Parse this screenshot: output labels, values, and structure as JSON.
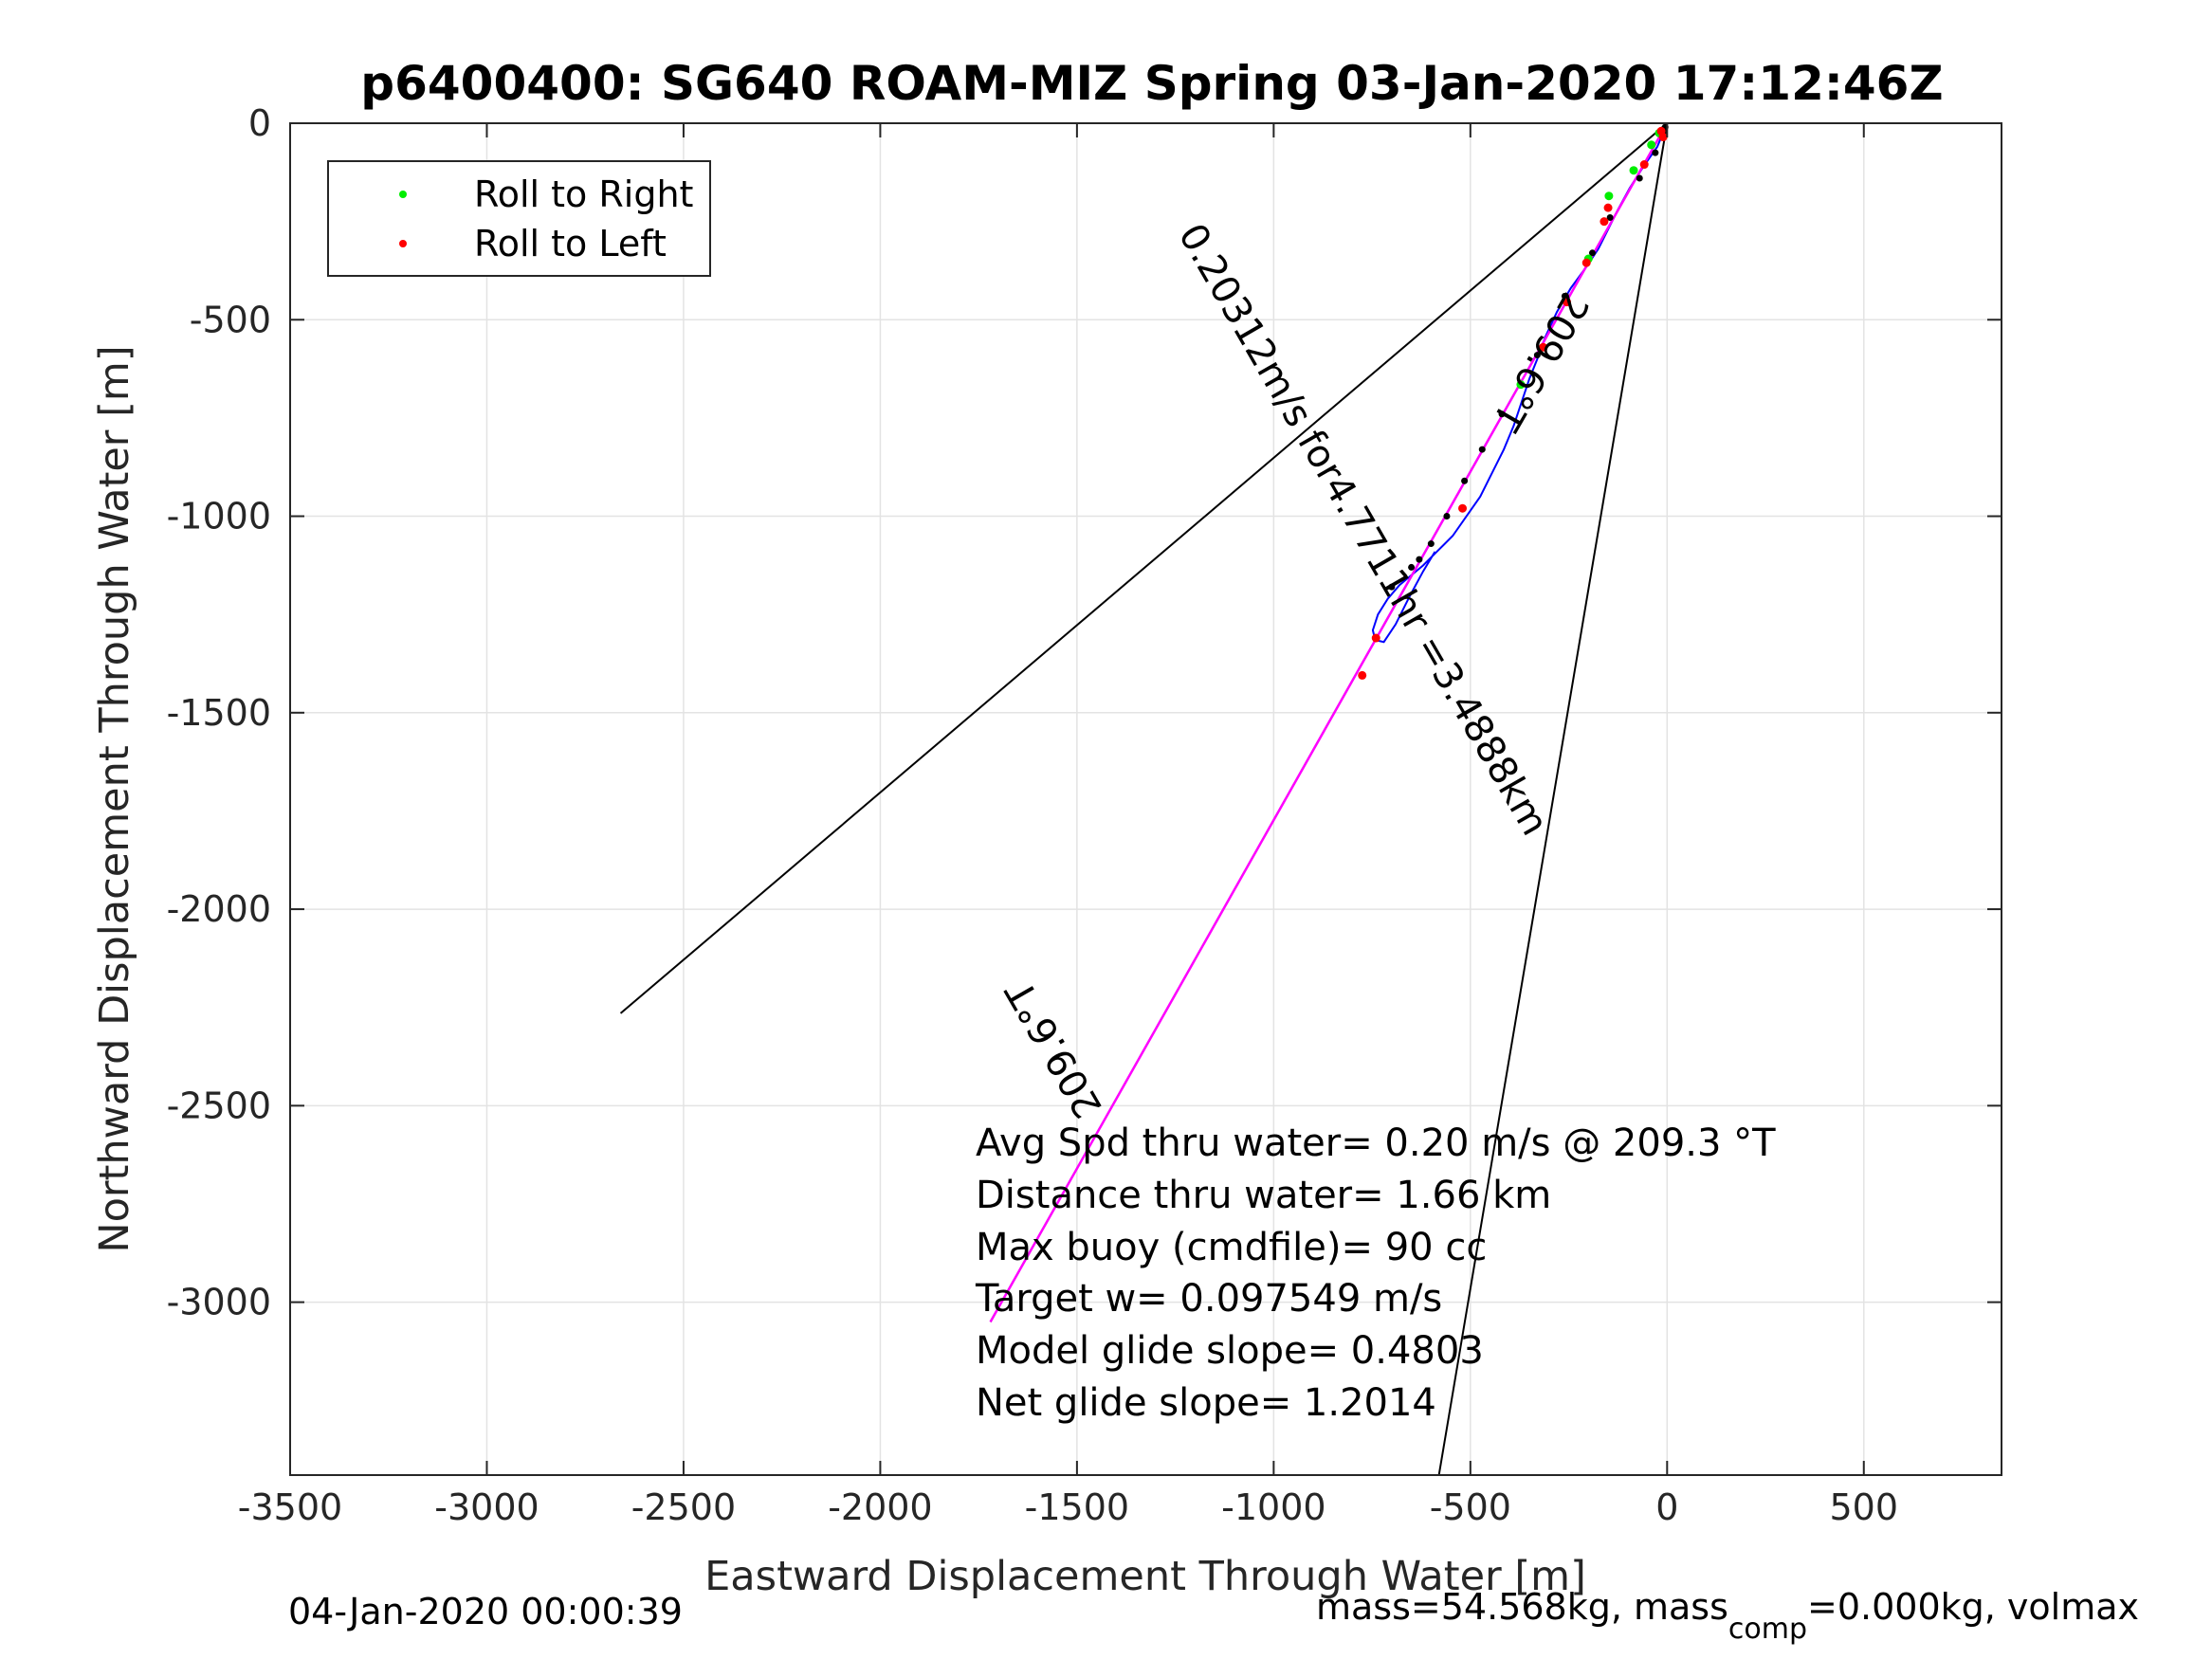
{
  "figure": {
    "title": "p6400400: SG640 ROAM-MIZ Spring 03-Jan-2020 17:12:46Z",
    "footer_left": "04-Jan-2020 00:00:39",
    "footer_right": {
      "part1": "mass=54.568kg, mass",
      "sub": "comp",
      "part2": "=0.000kg, volmax"
    }
  },
  "chart_data": {
    "type": "line",
    "xlabel": "Eastward Displacement Through Water [m]",
    "ylabel": "Northward Displacement Through Water [m]",
    "xlim": [
      -3500,
      850
    ],
    "ylim": [
      -3440,
      0
    ],
    "xticks": [
      -3500,
      -3000,
      -2500,
      -2000,
      -1500,
      -1000,
      -500,
      0,
      500
    ],
    "xtick_labels": [
      "-3500",
      "-3000",
      "-2500",
      "-2000",
      "-1500",
      "-1000",
      "-500",
      "0",
      "500"
    ],
    "yticks": [
      0,
      -500,
      -1000,
      -1500,
      -2000,
      -2500,
      -3000
    ],
    "ytick_labels": [
      "0",
      "-500",
      "-1000",
      "-1500",
      "-2000",
      "-2500",
      "-3000"
    ],
    "grid": true,
    "legend_position": "top-left",
    "legend": [
      {
        "label": "Roll to Right",
        "color": "#00ee00"
      },
      {
        "label": "Roll to Left",
        "color": "#ff0000"
      }
    ],
    "colors": {
      "track": "#0000ff",
      "heading": "#ff00ff",
      "roll_right": "#00ee00",
      "roll_left": "#ff0000",
      "marker": "#000000",
      "lines": "#000000"
    },
    "series": [
      {
        "role": "track",
        "x": [
          0,
          -25,
          -60,
          -95,
          -125,
          -150,
          -175,
          -205,
          -245,
          -280,
          -310,
          -330,
          -350,
          -370,
          -390,
          -415,
          -445,
          -475,
          -510,
          -545,
          -585,
          -620,
          -650,
          -680,
          -710,
          -735,
          -748,
          -742,
          -720,
          -690,
          -655,
          -620,
          -590
        ],
        "y": [
          0,
          -60,
          -110,
          -165,
          -220,
          -270,
          -320,
          -365,
          -420,
          -480,
          -545,
          -600,
          -650,
          -710,
          -770,
          -830,
          -890,
          -950,
          -1000,
          -1050,
          -1090,
          -1125,
          -1150,
          -1175,
          -1210,
          -1250,
          -1290,
          -1315,
          -1320,
          -1275,
          -1205,
          -1140,
          -1090
        ]
      },
      {
        "role": "heading",
        "x": [
          0,
          -1720
        ],
        "y": [
          0,
          -3050
        ]
      },
      {
        "role": "bound-left",
        "x": [
          0,
          -2660
        ],
        "y": [
          0,
          -2265
        ]
      },
      {
        "role": "bound-right",
        "x": [
          0,
          -580
        ],
        "y": [
          0,
          -3440
        ]
      },
      {
        "role": "bound-center",
        "x": [
          0,
          -1720
        ],
        "y": [
          0,
          -3050
        ]
      }
    ],
    "points": {
      "roll_right": {
        "x": [
          -40,
          -85,
          -148,
          -372,
          -200,
          -20
        ],
        "y": [
          -55,
          -120,
          -185,
          -665,
          -345,
          -25
        ]
      },
      "roll_left": {
        "x": [
          -15,
          -58,
          -150,
          -160,
          -205,
          -255,
          -315,
          -520,
          -740,
          -775,
          -10
        ],
        "y": [
          -20,
          -105,
          -215,
          -250,
          -355,
          -455,
          -570,
          -980,
          -1310,
          -1405,
          -35
        ]
      },
      "markers": {
        "x": [
          -5,
          -30,
          -70,
          -145,
          -190,
          -260,
          -330,
          -420,
          -470,
          -515,
          -560,
          -600,
          -630,
          -650,
          -700
        ],
        "y": [
          -10,
          -75,
          -140,
          -240,
          -330,
          -440,
          -590,
          -740,
          -830,
          -910,
          -1000,
          -1070,
          -1110,
          -1130,
          -1180
        ]
      }
    },
    "annotations": [
      {
        "text": "209.6°T",
        "x": -350,
        "y": -590,
        "rotate": 120
      },
      {
        "text": "0.20312m/s for4.7711hr =3.4888km",
        "x": -800,
        "y": -1050,
        "rotate": 60
      },
      {
        "text": "209.6°T",
        "x": -1530,
        "y": -2340,
        "rotate": 240
      }
    ],
    "stats": [
      "Avg Spd thru water=  0.20 m/s @ 209.3 °T",
      "Distance thru water=  1.66 km",
      "Max buoy (cmdfile)= 90 cc",
      "Target w= 0.097549 m/s",
      "Model glide slope= 0.4803",
      "Net glide slope= 1.2014"
    ]
  }
}
